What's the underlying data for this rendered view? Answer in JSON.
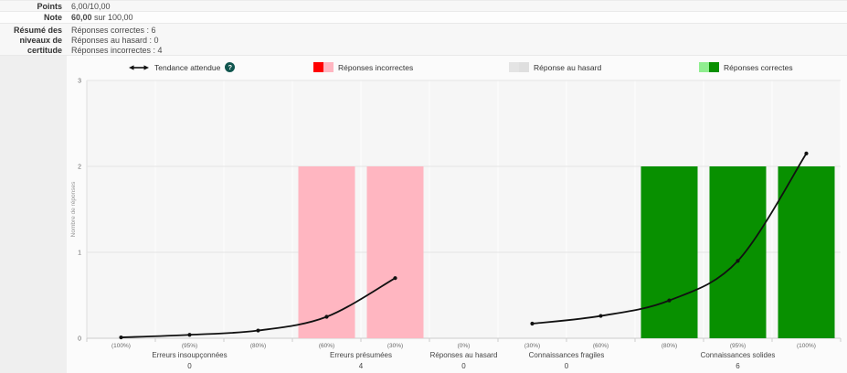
{
  "summary_table": {
    "rows": [
      {
        "label": "Points",
        "value": "6,00/10,00"
      },
      {
        "label": "Note",
        "value_bold": "60,00",
        "value_rest": " sur 100,00"
      },
      {
        "label_lines": [
          "Résumé des",
          "niveaux de",
          "certitude"
        ],
        "value_lines": [
          "Réponses correctes : 6",
          "Réponses au hasard : 0",
          "Réponses incorrectes : 4"
        ]
      }
    ]
  },
  "legend": {
    "help_glyph": "?",
    "items": [
      {
        "label": "Tendance attendue",
        "swatch": "trend-line"
      },
      {
        "label": "Réponses incorrectes",
        "swatch": "two-tone",
        "colors": [
          "#ff0000",
          "#ffb6c1"
        ]
      },
      {
        "label": "Réponse au hasard",
        "swatch": "two-tone",
        "colors": [
          "#e4e4e4",
          "#dfdfdf"
        ]
      },
      {
        "label": "Réponses correctes",
        "swatch": "two-tone",
        "colors": [
          "#90ee90",
          "#089000"
        ]
      }
    ]
  },
  "chart_data": {
    "type": "bar+line",
    "title": "",
    "xlabel": "",
    "ylabel": "Nombre de réponses",
    "ylim": [
      0,
      3
    ],
    "yticks": [
      0,
      1,
      2,
      3
    ],
    "grid": true,
    "legend_position": "top",
    "categories": [
      "(100%)",
      "(95%)",
      "(80%)",
      "(60%)",
      "(30%)",
      "(0%)",
      "(30%)",
      "(60%)",
      "(80%)",
      "(95%)",
      "(100%)"
    ],
    "series": [
      {
        "name": "Réponses incorrectes",
        "type": "bar",
        "color": "#ffb6c1",
        "values": [
          0,
          0,
          0,
          2,
          2,
          0,
          0,
          0,
          0,
          0,
          0
        ]
      },
      {
        "name": "Réponses correctes",
        "type": "bar",
        "color": "#089000",
        "values": [
          0,
          0,
          0,
          0,
          0,
          0,
          0,
          0,
          2,
          2,
          2
        ]
      },
      {
        "name": "Tendance attendue",
        "type": "line",
        "color": "#111111",
        "segments": [
          {
            "x": [
              0,
              1,
              2,
              3,
              4
            ],
            "y": [
              0.01,
              0.04,
              0.09,
              0.25,
              0.7
            ]
          },
          {
            "x": [
              6,
              7,
              8,
              9,
              10
            ],
            "y": [
              0.17,
              0.26,
              0.44,
              0.9,
              2.15
            ]
          }
        ]
      }
    ],
    "groups": [
      {
        "label": "Erreurs insoupçonnées",
        "count": "0",
        "from": 0,
        "to": 2
      },
      {
        "label": "Erreurs présumées",
        "count": "4",
        "from": 3,
        "to": 4
      },
      {
        "label": "Réponses au hasard",
        "count": "0",
        "from": 5,
        "to": 5
      },
      {
        "label": "Connaissances fragiles",
        "count": "0",
        "from": 6,
        "to": 7
      },
      {
        "label": "Connaissances solides",
        "count": "6",
        "from": 8,
        "to": 10
      }
    ],
    "colors": {
      "plot_bg": "#f6f6f6",
      "grid_v": "#ffffff",
      "grid_h": "#e4e4e4",
      "axis": "#cccccc",
      "axis_left": "#dedede",
      "tick_text": "#666666",
      "group_text": "#444444",
      "ylabel_text": "#999999"
    }
  }
}
